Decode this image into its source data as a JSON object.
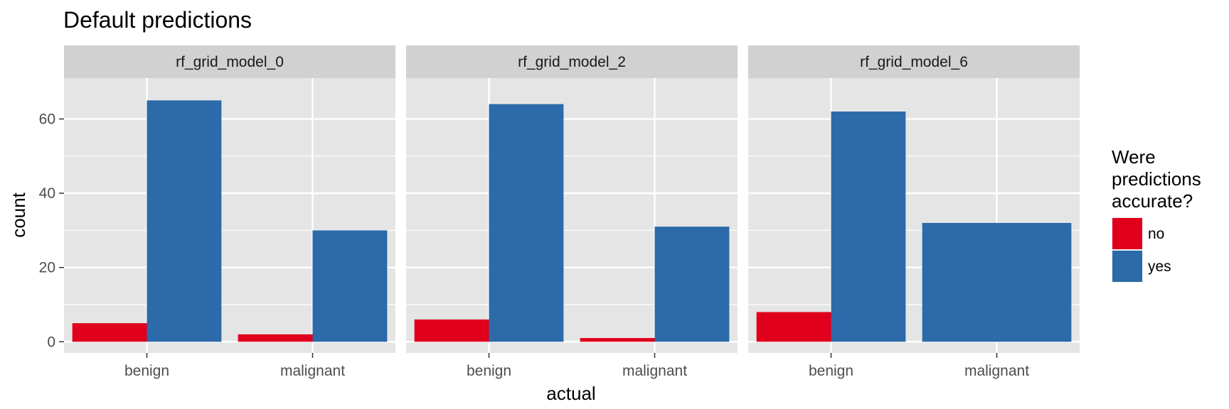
{
  "chart_data": {
    "type": "bar",
    "title": "Default predictions",
    "xlabel": "actual",
    "ylabel": "count",
    "ylim": [
      -3,
      71
    ],
    "yticks": [
      0,
      20,
      40,
      60
    ],
    "grid": true,
    "categories": [
      "benign",
      "malignant"
    ],
    "facets": [
      {
        "label": "rf_grid_model_0",
        "series": [
          {
            "name": "no",
            "values": [
              5,
              2
            ]
          },
          {
            "name": "yes",
            "values": [
              65,
              30
            ]
          }
        ]
      },
      {
        "label": "rf_grid_model_2",
        "series": [
          {
            "name": "no",
            "values": [
              6,
              1
            ]
          },
          {
            "name": "yes",
            "values": [
              64,
              31
            ]
          }
        ]
      },
      {
        "label": "rf_grid_model_6",
        "series": [
          {
            "name": "no",
            "values": [
              8,
              0
            ]
          },
          {
            "name": "yes",
            "values": [
              62,
              32
            ]
          }
        ]
      }
    ],
    "legend": {
      "title_lines": [
        "Were",
        "predictions",
        "accurate?"
      ],
      "placement": "right",
      "entries": [
        {
          "label": "no",
          "color": "#E0001B"
        },
        {
          "label": "yes",
          "color": "#2C6AA9"
        }
      ]
    },
    "colors": {
      "no": "#E0001B",
      "yes": "#2C6AA9",
      "panel": "#E5E5E5",
      "strip": "#D1D1D1",
      "grid": "#FFFFFF"
    }
  }
}
